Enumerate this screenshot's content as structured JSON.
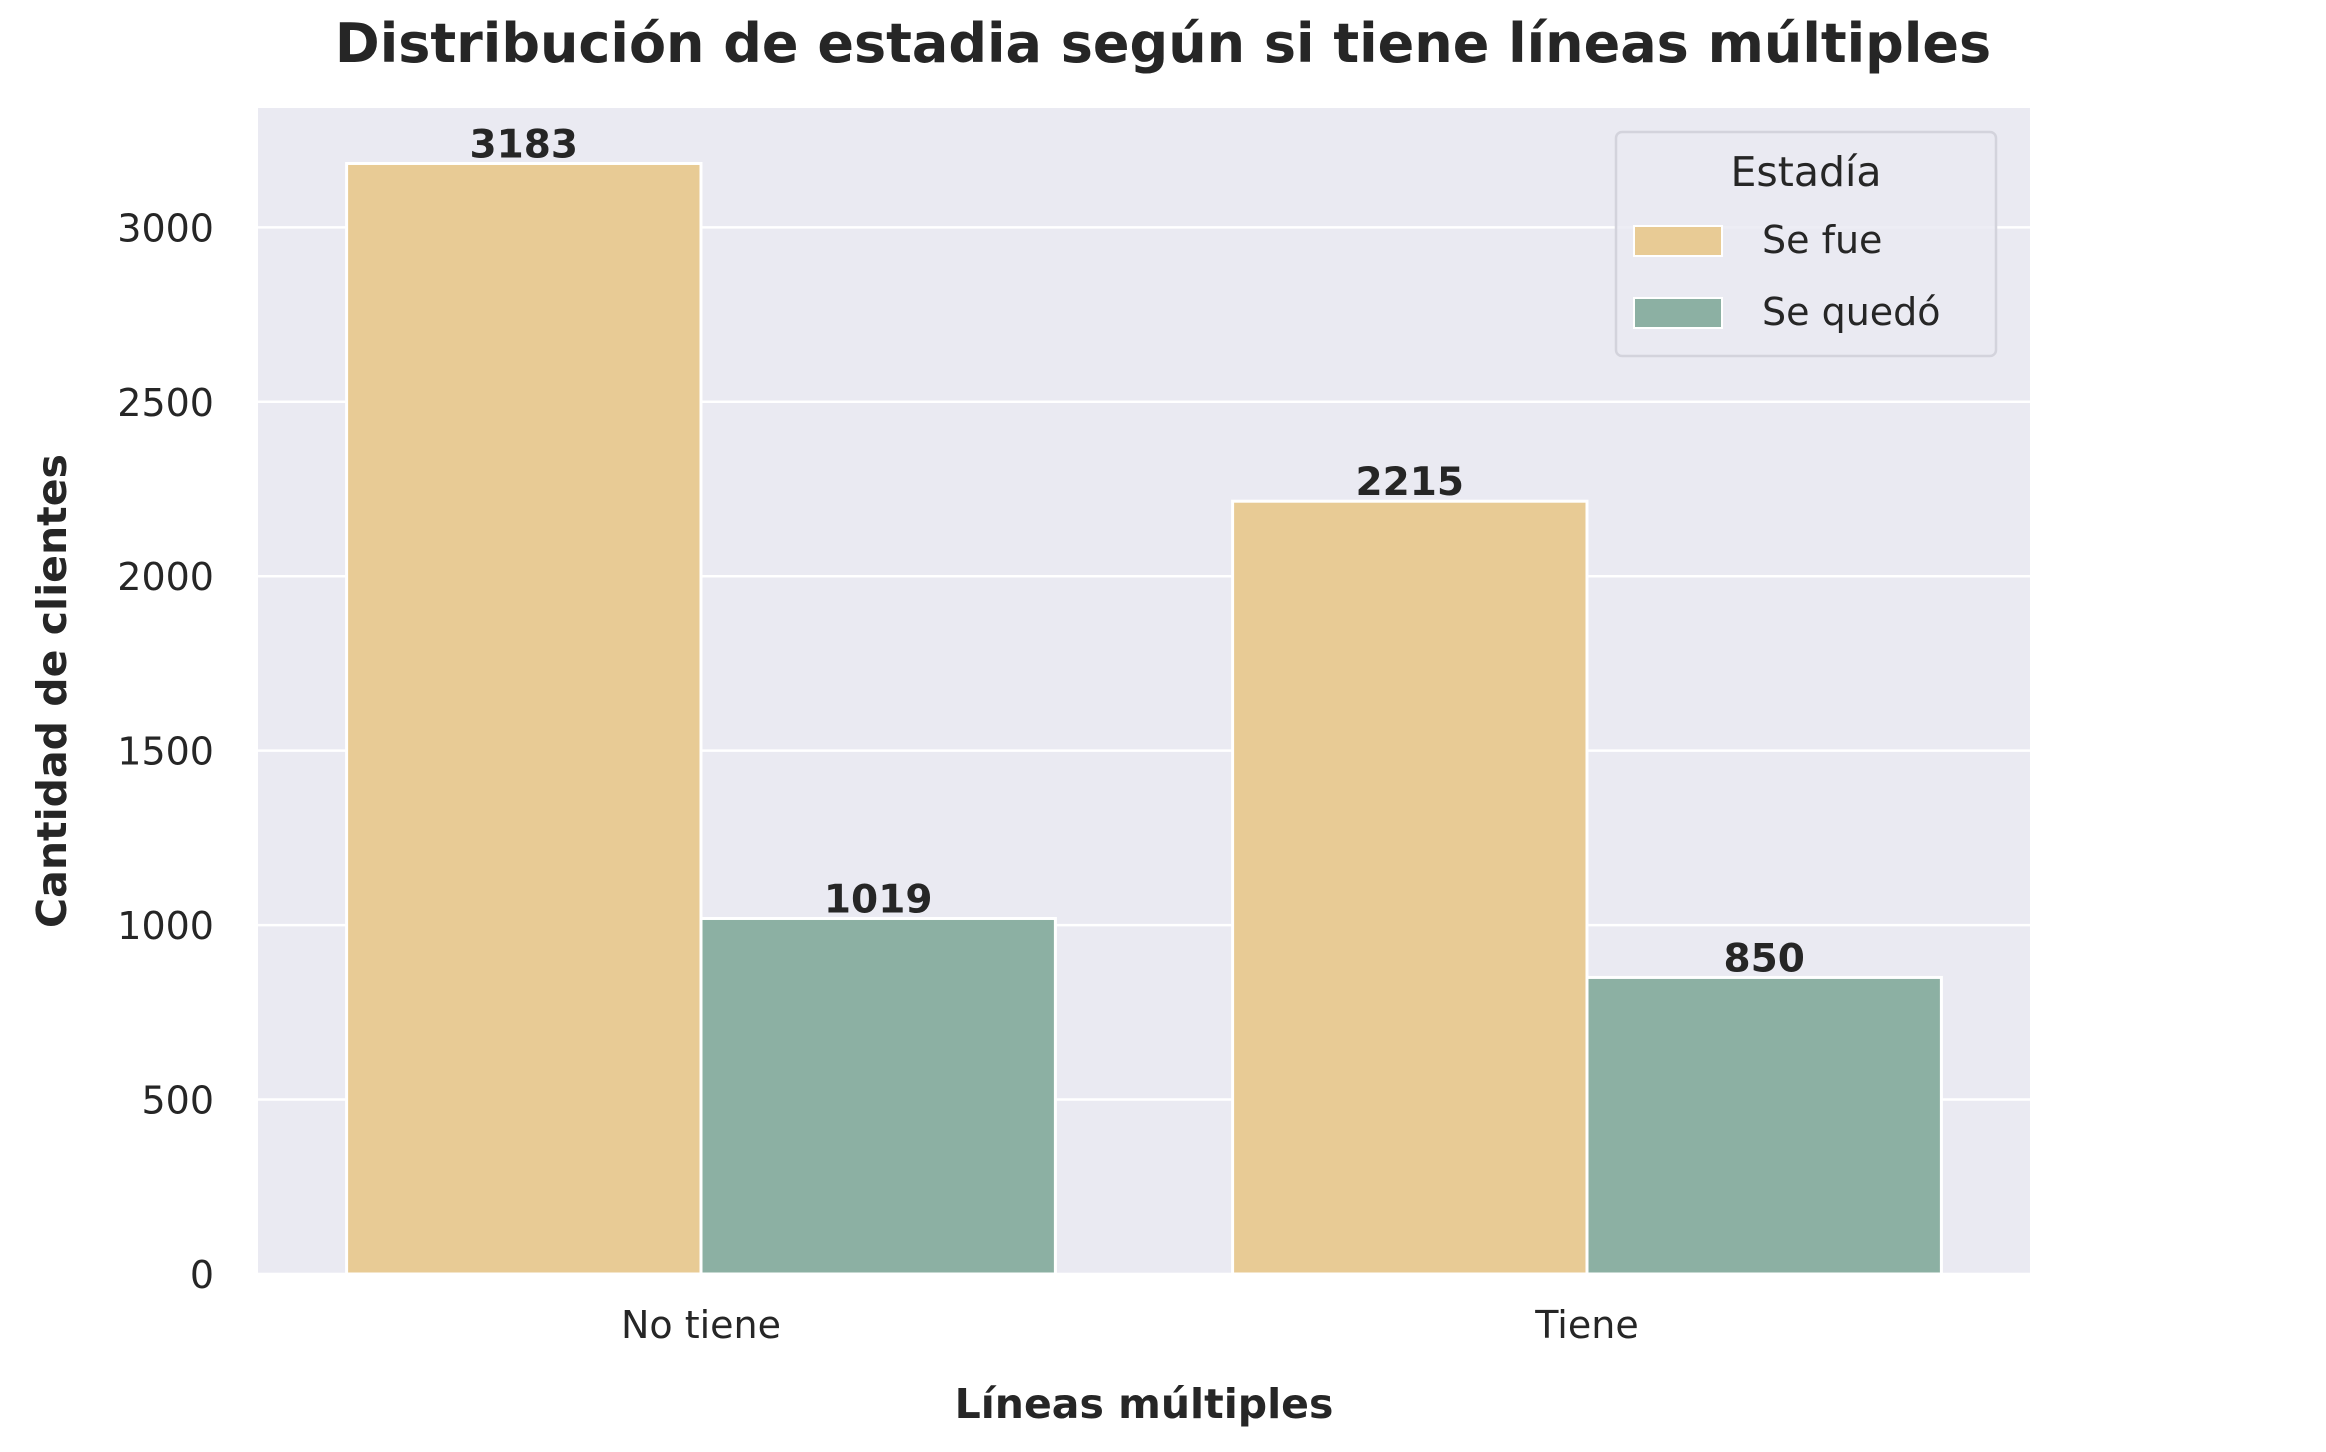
{
  "chart_data": {
    "type": "bar",
    "title": "Distribución de estadia según si tiene líneas múltiples",
    "xlabel": "Líneas múltiples",
    "ylabel": "Cantidad de clientes",
    "categories": [
      "No tiene",
      "Tiene"
    ],
    "series": [
      {
        "name": "Se fue",
        "values": [
          3183,
          2215
        ],
        "color": "#e8cb95"
      },
      {
        "name": "Se quedó",
        "values": [
          1019,
          850
        ],
        "color": "#8cb0a3"
      }
    ],
    "yticks": [
      0,
      500,
      1000,
      1500,
      2000,
      2500,
      3000
    ],
    "ylim": [
      0,
      3342
    ],
    "grid": true,
    "legend": {
      "title": "Estadía",
      "placement": "top-right"
    },
    "background_color": "#eaeaf2"
  }
}
